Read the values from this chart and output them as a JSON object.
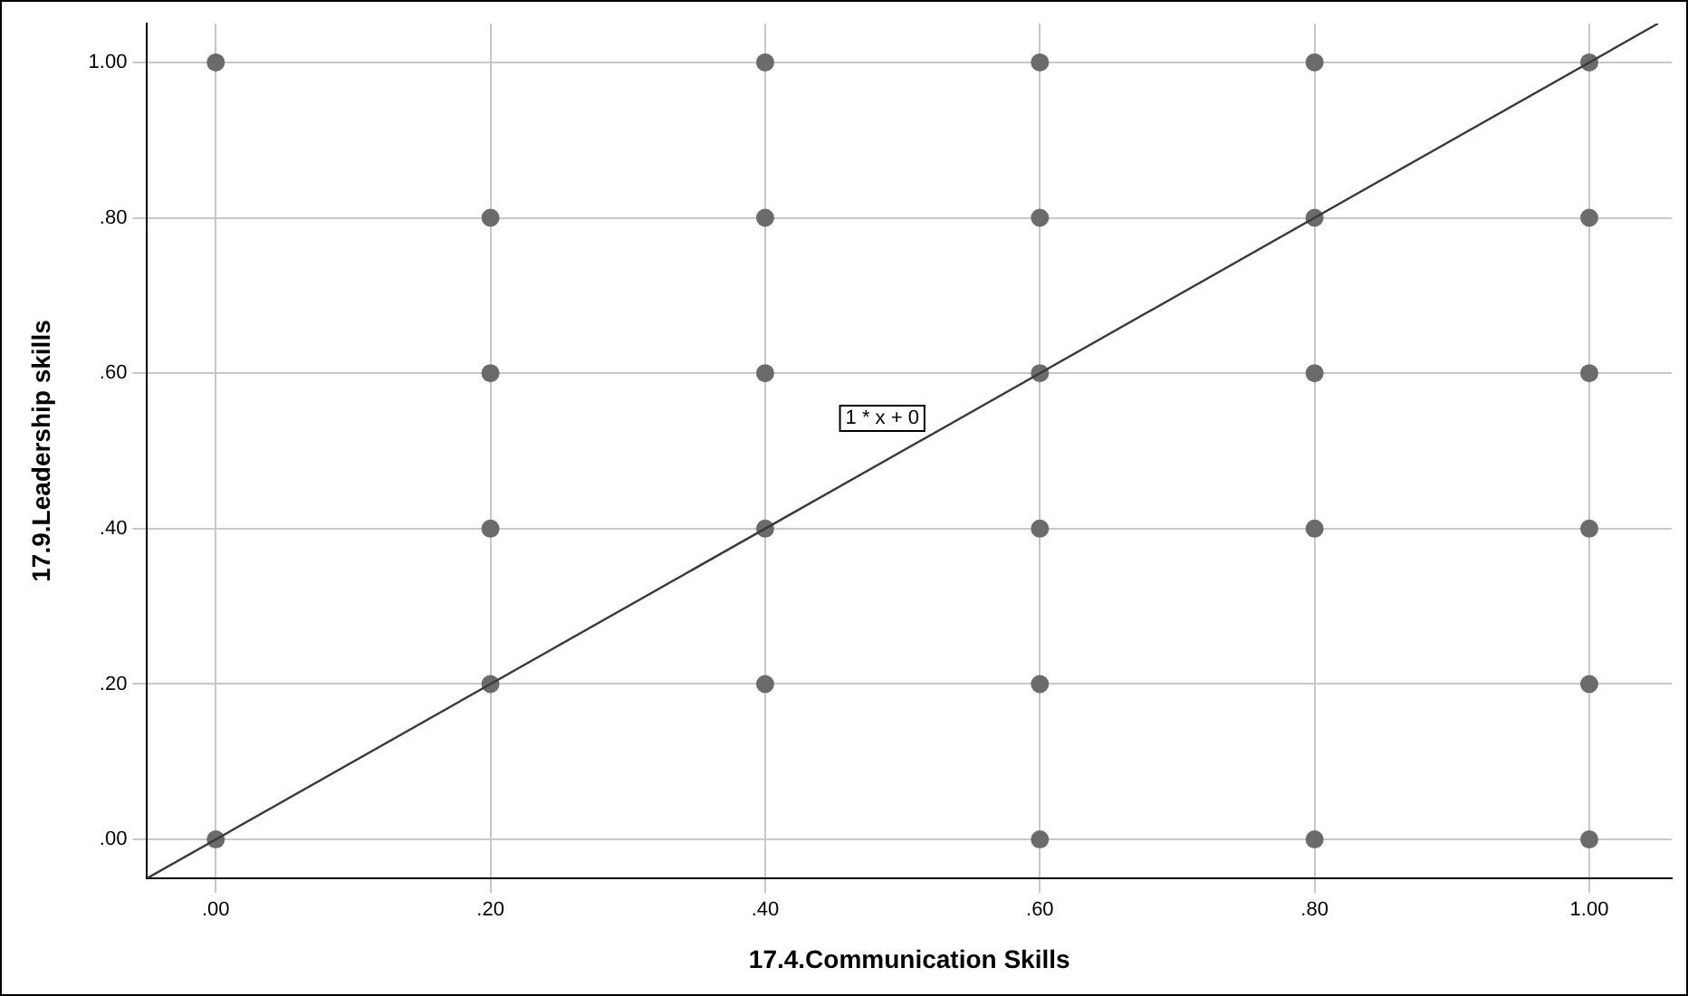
{
  "chart_data": {
    "type": "scatter",
    "xlabel": "17.4.Communication Skills",
    "ylabel": "17.9.Leadership skills",
    "xlim": [
      -0.05,
      1.06
    ],
    "ylim": [
      -0.05,
      1.05
    ],
    "xticks": [
      {
        "value": 0,
        "label": ".00"
      },
      {
        "value": 0.2,
        "label": ".20"
      },
      {
        "value": 0.4,
        "label": ".40"
      },
      {
        "value": 0.6,
        "label": ".60"
      },
      {
        "value": 0.8,
        "label": ".80"
      },
      {
        "value": 1,
        "label": "1.00"
      }
    ],
    "yticks": [
      {
        "value": 0,
        "label": ".00"
      },
      {
        "value": 0.2,
        "label": ".20"
      },
      {
        "value": 0.4,
        "label": ".40"
      },
      {
        "value": 0.6,
        "label": ".60"
      },
      {
        "value": 0.8,
        "label": ".80"
      },
      {
        "value": 1,
        "label": "1.00"
      }
    ],
    "grid": true,
    "legend": false,
    "series": [
      {
        "marker": "circle",
        "color": "#6b6b6b",
        "x": [
          0,
          0,
          0.2,
          0.2,
          0.2,
          0.2,
          0.4,
          0.4,
          0.4,
          0.4,
          0.4,
          0.6,
          0.6,
          0.6,
          0.6,
          0.6,
          0.6,
          0.8,
          0.8,
          0.8,
          0.8,
          0.8,
          1,
          1,
          1,
          1,
          1,
          1
        ],
        "values": [
          1,
          0,
          0.8,
          0.6,
          0.4,
          0.2,
          1,
          0.8,
          0.6,
          0.4,
          0.2,
          1,
          0.8,
          0.6,
          0.4,
          0.2,
          0,
          1,
          0.8,
          0.6,
          0.4,
          0,
          1,
          0.8,
          0.6,
          0.4,
          0.2,
          0
        ]
      },
      {
        "type": "line",
        "marker": "none",
        "color": "#3a3a3a",
        "x": [
          -0.05,
          1.05
        ],
        "values": [
          -0.05,
          1.05
        ]
      }
    ],
    "annotations": [
      "1 * x + 0"
    ]
  }
}
